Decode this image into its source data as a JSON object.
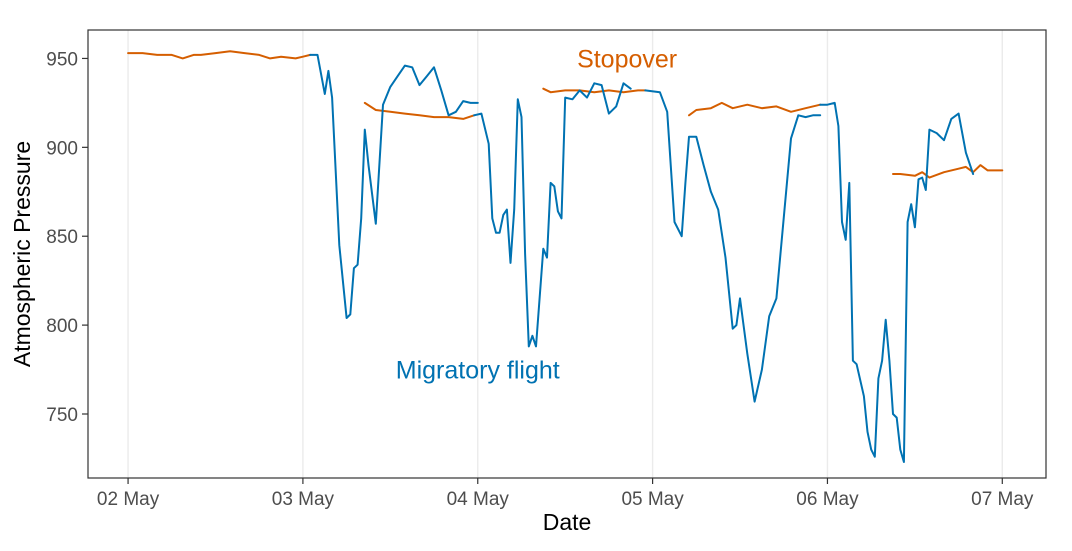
{
  "chart_data": {
    "type": "line",
    "xlabel": "Date",
    "ylabel": "Atmospheric Pressure",
    "x_tick_labels": [
      "02 May",
      "03 May",
      "04 May",
      "05 May",
      "06 May",
      "07 May"
    ],
    "y_ticks": [
      750,
      800,
      850,
      900,
      950
    ],
    "xlim": [
      "2024-05-01 18:30",
      "2024-05-07 06:00"
    ],
    "ylim": [
      714,
      966
    ],
    "grid": "vertical-major",
    "legend": "none",
    "annotations": [
      {
        "text": "Stopover",
        "color": "#D55E00",
        "x": "2024-05-04 20:30",
        "y": 945
      },
      {
        "text": "Migratory flight",
        "color": "#0072B2",
        "x": "2024-05-04 00:00",
        "y": 770
      }
    ],
    "series": [
      {
        "color": "#D55E00",
        "annotation": "Stopover",
        "points": [
          [
            "2024-05-02 00:00",
            953
          ],
          [
            "2024-05-02 02:00",
            953
          ],
          [
            "2024-05-02 04:00",
            952
          ],
          [
            "2024-05-02 06:00",
            952
          ],
          [
            "2024-05-02 07:30",
            950
          ],
          [
            "2024-05-02 09:00",
            952
          ],
          [
            "2024-05-02 10:00",
            952
          ],
          [
            "2024-05-02 12:00",
            953
          ],
          [
            "2024-05-02 14:00",
            954
          ],
          [
            "2024-05-02 16:00",
            953
          ],
          [
            "2024-05-02 18:00",
            952
          ],
          [
            "2024-05-02 19:30",
            950
          ],
          [
            "2024-05-02 21:00",
            951
          ],
          [
            "2024-05-02 23:00",
            950
          ],
          [
            "2024-05-03 00:00",
            951
          ],
          [
            "2024-05-03 01:00",
            952
          ]
        ]
      },
      {
        "color": "#D55E00",
        "annotation": "Stopover",
        "points": [
          [
            "2024-05-03 08:30",
            925
          ],
          [
            "2024-05-03 10:00",
            921
          ],
          [
            "2024-05-03 12:00",
            920
          ],
          [
            "2024-05-03 14:00",
            919
          ],
          [
            "2024-05-03 16:00",
            918
          ],
          [
            "2024-05-03 18:00",
            917
          ],
          [
            "2024-05-03 20:00",
            917
          ],
          [
            "2024-05-03 22:00",
            916
          ],
          [
            "2024-05-03 23:30",
            918
          ]
        ]
      },
      {
        "color": "#D55E00",
        "annotation": "Stopover",
        "points": [
          [
            "2024-05-04 09:00",
            933
          ],
          [
            "2024-05-04 10:00",
            931
          ],
          [
            "2024-05-04 12:00",
            932
          ],
          [
            "2024-05-04 14:00",
            932
          ],
          [
            "2024-05-04 16:00",
            931
          ],
          [
            "2024-05-04 18:00",
            932
          ],
          [
            "2024-05-04 20:00",
            931
          ],
          [
            "2024-05-04 22:00",
            932
          ],
          [
            "2024-05-04 23:00",
            932
          ]
        ]
      },
      {
        "color": "#D55E00",
        "annotation": "Stopover",
        "points": [
          [
            "2024-05-05 05:00",
            918
          ],
          [
            "2024-05-05 06:00",
            921
          ],
          [
            "2024-05-05 08:00",
            922
          ],
          [
            "2024-05-05 09:30",
            925
          ],
          [
            "2024-05-05 11:00",
            922
          ],
          [
            "2024-05-05 13:00",
            924
          ],
          [
            "2024-05-05 15:00",
            922
          ],
          [
            "2024-05-05 17:00",
            923
          ],
          [
            "2024-05-05 19:00",
            920
          ],
          [
            "2024-05-05 21:00",
            922
          ],
          [
            "2024-05-05 23:00",
            924
          ]
        ]
      },
      {
        "color": "#D55E00",
        "annotation": "Stopover",
        "points": [
          [
            "2024-05-06 09:00",
            885
          ],
          [
            "2024-05-06 10:00",
            885
          ],
          [
            "2024-05-06 12:00",
            884
          ],
          [
            "2024-05-06 13:00",
            886
          ],
          [
            "2024-05-06 14:00",
            883
          ],
          [
            "2024-05-06 16:00",
            886
          ],
          [
            "2024-05-06 18:00",
            888
          ],
          [
            "2024-05-06 19:00",
            889
          ],
          [
            "2024-05-06 20:00",
            886
          ],
          [
            "2024-05-06 21:00",
            890
          ],
          [
            "2024-05-06 22:00",
            887
          ],
          [
            "2024-05-07 00:00",
            887
          ]
        ]
      },
      {
        "color": "#0072B2",
        "annotation": "Migratory flight",
        "points": [
          [
            "2024-05-03 01:00",
            952
          ],
          [
            "2024-05-03 02:00",
            952
          ],
          [
            "2024-05-03 03:00",
            930
          ],
          [
            "2024-05-03 03:30",
            943
          ],
          [
            "2024-05-03 04:00",
            928
          ],
          [
            "2024-05-03 05:00",
            845
          ],
          [
            "2024-05-03 06:00",
            804
          ],
          [
            "2024-05-03 06:30",
            806
          ],
          [
            "2024-05-03 07:00",
            832
          ],
          [
            "2024-05-03 07:30",
            834
          ],
          [
            "2024-05-03 08:00",
            860
          ],
          [
            "2024-05-03 08:30",
            910
          ],
          [
            "2024-05-03 09:00",
            890
          ],
          [
            "2024-05-03 10:00",
            857
          ],
          [
            "2024-05-03 11:00",
            924
          ],
          [
            "2024-05-03 12:00",
            934
          ],
          [
            "2024-05-03 13:00",
            940
          ],
          [
            "2024-05-03 14:00",
            946
          ],
          [
            "2024-05-03 15:00",
            945
          ],
          [
            "2024-05-03 16:00",
            935
          ],
          [
            "2024-05-03 17:00",
            940
          ],
          [
            "2024-05-03 18:00",
            945
          ],
          [
            "2024-05-03 19:00",
            932
          ],
          [
            "2024-05-03 20:00",
            918
          ],
          [
            "2024-05-03 21:00",
            920
          ],
          [
            "2024-05-03 22:00",
            926
          ],
          [
            "2024-05-03 23:00",
            925
          ],
          [
            "2024-05-04 00:00",
            925
          ]
        ]
      },
      {
        "color": "#0072B2",
        "annotation": "Migratory flight",
        "points": [
          [
            "2024-05-03 23:30",
            918
          ],
          [
            "2024-05-04 00:30",
            919
          ],
          [
            "2024-05-04 01:30",
            902
          ],
          [
            "2024-05-04 02:00",
            860
          ],
          [
            "2024-05-04 02:30",
            852
          ],
          [
            "2024-05-04 03:00",
            852
          ],
          [
            "2024-05-04 03:30",
            862
          ],
          [
            "2024-05-04 04:00",
            865
          ],
          [
            "2024-05-04 04:30",
            835
          ],
          [
            "2024-05-04 05:00",
            865
          ],
          [
            "2024-05-04 05:30",
            927
          ],
          [
            "2024-05-04 06:00",
            917
          ],
          [
            "2024-05-04 06:30",
            840
          ],
          [
            "2024-05-04 07:00",
            788
          ],
          [
            "2024-05-04 07:30",
            794
          ],
          [
            "2024-05-04 08:00",
            788
          ],
          [
            "2024-05-04 09:00",
            843
          ],
          [
            "2024-05-04 09:30",
            838
          ],
          [
            "2024-05-04 10:00",
            880
          ],
          [
            "2024-05-04 10:30",
            878
          ],
          [
            "2024-05-04 11:00",
            864
          ],
          [
            "2024-05-04 11:30",
            860
          ],
          [
            "2024-05-04 12:00",
            928
          ],
          [
            "2024-05-04 13:00",
            927
          ],
          [
            "2024-05-04 14:00",
            932
          ],
          [
            "2024-05-04 15:00",
            928
          ],
          [
            "2024-05-04 16:00",
            936
          ],
          [
            "2024-05-04 17:00",
            935
          ],
          [
            "2024-05-04 18:00",
            919
          ],
          [
            "2024-05-04 19:00",
            923
          ],
          [
            "2024-05-04 20:00",
            936
          ],
          [
            "2024-05-04 21:00",
            933
          ]
        ]
      },
      {
        "color": "#0072B2",
        "annotation": "Migratory flight",
        "points": [
          [
            "2024-05-04 23:00",
            932
          ],
          [
            "2024-05-05 01:00",
            931
          ],
          [
            "2024-05-05 02:00",
            920
          ],
          [
            "2024-05-05 03:00",
            858
          ],
          [
            "2024-05-05 04:00",
            850
          ],
          [
            "2024-05-05 04:30",
            880
          ],
          [
            "2024-05-05 05:00",
            906
          ],
          [
            "2024-05-05 06:00",
            906
          ],
          [
            "2024-05-05 07:00",
            890
          ],
          [
            "2024-05-05 08:00",
            875
          ],
          [
            "2024-05-05 09:00",
            865
          ],
          [
            "2024-05-05 10:00",
            838
          ],
          [
            "2024-05-05 11:00",
            798
          ],
          [
            "2024-05-05 11:30",
            800
          ],
          [
            "2024-05-05 12:00",
            815
          ],
          [
            "2024-05-05 13:00",
            784
          ],
          [
            "2024-05-05 14:00",
            757
          ],
          [
            "2024-05-05 15:00",
            775
          ],
          [
            "2024-05-05 16:00",
            805
          ],
          [
            "2024-05-05 17:00",
            815
          ],
          [
            "2024-05-05 18:00",
            860
          ],
          [
            "2024-05-05 19:00",
            905
          ],
          [
            "2024-05-05 20:00",
            918
          ],
          [
            "2024-05-05 21:00",
            917
          ],
          [
            "2024-05-05 22:00",
            918
          ],
          [
            "2024-05-05 23:00",
            918
          ]
        ]
      },
      {
        "color": "#0072B2",
        "annotation": "Migratory flight",
        "points": [
          [
            "2024-05-05 23:00",
            924
          ],
          [
            "2024-05-06 00:00",
            924
          ],
          [
            "2024-05-06 01:00",
            925
          ],
          [
            "2024-05-06 01:30",
            912
          ],
          [
            "2024-05-06 02:00",
            858
          ],
          [
            "2024-05-06 02:30",
            848
          ],
          [
            "2024-05-06 03:00",
            880
          ],
          [
            "2024-05-06 03:30",
            780
          ],
          [
            "2024-05-06 04:00",
            778
          ],
          [
            "2024-05-06 05:00",
            760
          ],
          [
            "2024-05-06 05:30",
            740
          ],
          [
            "2024-05-06 06:00",
            730
          ],
          [
            "2024-05-06 06:30",
            726
          ],
          [
            "2024-05-06 07:00",
            770
          ],
          [
            "2024-05-06 07:30",
            780
          ],
          [
            "2024-05-06 08:00",
            803
          ],
          [
            "2024-05-06 08:30",
            780
          ],
          [
            "2024-05-06 09:00",
            750
          ],
          [
            "2024-05-06 09:30",
            748
          ],
          [
            "2024-05-06 10:00",
            730
          ],
          [
            "2024-05-06 10:30",
            723
          ],
          [
            "2024-05-06 11:00",
            858
          ],
          [
            "2024-05-06 11:30",
            868
          ],
          [
            "2024-05-06 12:00",
            855
          ],
          [
            "2024-05-06 12:30",
            882
          ],
          [
            "2024-05-06 13:00",
            883
          ],
          [
            "2024-05-06 13:30",
            876
          ],
          [
            "2024-05-06 14:00",
            910
          ],
          [
            "2024-05-06 15:00",
            908
          ],
          [
            "2024-05-06 16:00",
            904
          ],
          [
            "2024-05-06 17:00",
            916
          ],
          [
            "2024-05-06 18:00",
            919
          ],
          [
            "2024-05-06 19:00",
            897
          ],
          [
            "2024-05-06 20:00",
            885
          ]
        ]
      }
    ]
  }
}
